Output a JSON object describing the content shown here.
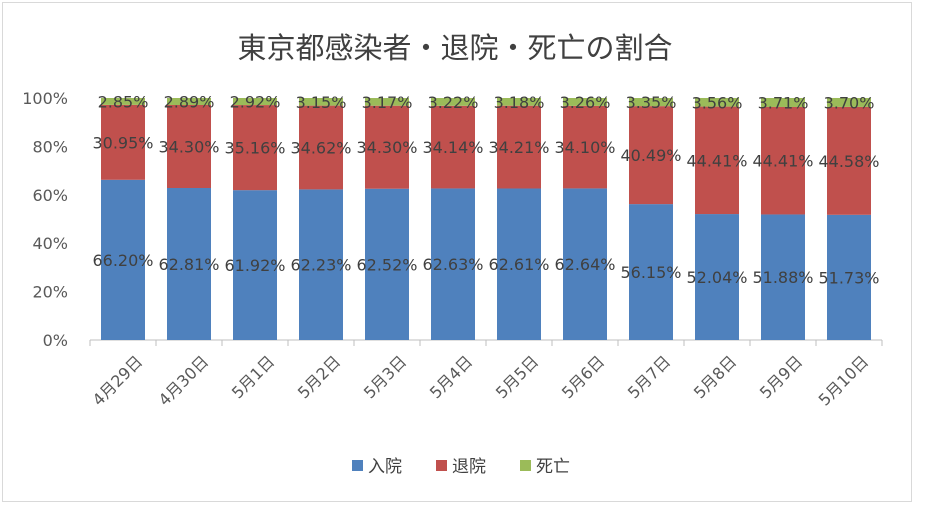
{
  "chart_data": {
    "type": "bar",
    "stacked": true,
    "title": "東京都感染者・退院・死亡の割合",
    "categories": [
      "4月29日",
      "4月30日",
      "5月1日",
      "5月2日",
      "5月3日",
      "5月4日",
      "5月5日",
      "5月6日",
      "5月7日",
      "5月8日",
      "5月9日",
      "5月10日"
    ],
    "series": [
      {
        "name": "入院",
        "color": "#4f81bd",
        "values": [
          66.2,
          62.81,
          61.92,
          62.23,
          62.52,
          62.63,
          62.61,
          62.64,
          56.15,
          52.04,
          51.88,
          51.73
        ],
        "labels": [
          "66.20%",
          "62.81%",
          "61.92%",
          "62.23%",
          "62.52%",
          "62.63%",
          "62.61%",
          "62.64%",
          "56.15%",
          "52.04%",
          "51.88%",
          "51.73%"
        ]
      },
      {
        "name": "退院",
        "color": "#c0504d",
        "values": [
          30.95,
          34.3,
          35.16,
          34.62,
          34.3,
          34.14,
          34.21,
          34.1,
          40.49,
          44.41,
          44.41,
          44.58
        ],
        "labels": [
          "30.95%",
          "34.30%",
          "35.16%",
          "34.62%",
          "34.30%",
          "34.14%",
          "34.21%",
          "34.10%",
          "40.49%",
          "44.41%",
          "44.41%",
          "44.58%"
        ]
      },
      {
        "name": "死亡",
        "color": "#9bbb59",
        "values": [
          2.85,
          2.89,
          2.92,
          3.15,
          3.17,
          3.22,
          3.18,
          3.26,
          3.35,
          3.56,
          3.71,
          3.7
        ],
        "labels": [
          "2.85%",
          "2.89%",
          "2.92%",
          "3.15%",
          "3.17%",
          "3.22%",
          "3.18%",
          "3.26%",
          "3.35%",
          "3.56%",
          "3.71%",
          "3.70%"
        ]
      }
    ],
    "y_ticks": [
      "0%",
      "20%",
      "40%",
      "60%",
      "80%",
      "100%"
    ],
    "ylim": [
      0,
      100
    ],
    "legend_position": "bottom",
    "grid": false
  }
}
